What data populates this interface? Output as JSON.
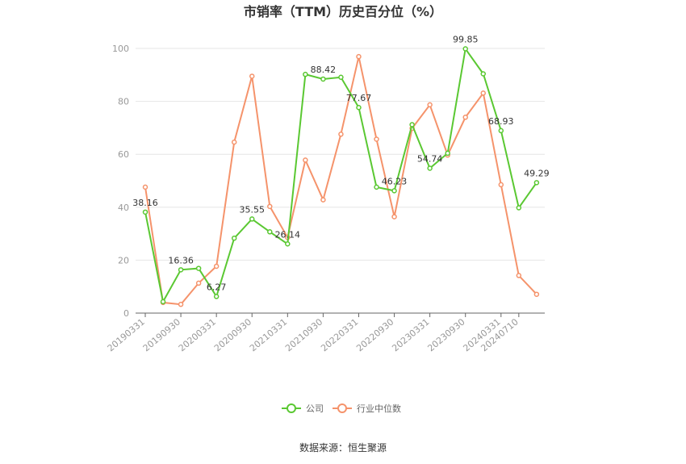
{
  "chart_data": {
    "type": "line",
    "title": "市销率（TTM）历史百分位（%）",
    "source": "数据来源：恒生聚源",
    "ylim": [
      0,
      100
    ],
    "yticks": [
      0,
      20,
      40,
      60,
      80,
      100
    ],
    "grid": true,
    "legend_position": "bottom",
    "x_tick_labels": [
      "20190331",
      "20190930",
      "20200331",
      "20200930",
      "20210331",
      "20210930",
      "20220331",
      "20220930",
      "20230331",
      "20230930",
      "20240331",
      "20240710"
    ],
    "x_tick_indices": [
      0,
      2,
      4,
      6,
      8,
      10,
      12,
      14,
      16,
      18,
      20,
      21
    ],
    "series": [
      {
        "name": "公司",
        "color": "#5ac832",
        "values": [
          38.16,
          4.3,
          16.36,
          16.9,
          6.27,
          28.3,
          35.55,
          30.7,
          26.14,
          90.2,
          88.42,
          89.1,
          77.67,
          47.6,
          46.23,
          71.2,
          54.74,
          60.4,
          99.85,
          90.4,
          68.93,
          39.8,
          49.29
        ],
        "labels": {
          "0": "38.16",
          "2": "16.36",
          "4": "6.27",
          "6": "35.55",
          "8": "26.14",
          "10": "88.42",
          "12": "77.67",
          "14": "46.23",
          "16": "54.74",
          "18": "99.85",
          "20": "68.93",
          "22": "49.29"
        }
      },
      {
        "name": "行业中位数",
        "color": "#f5936b",
        "values": [
          47.6,
          4.0,
          3.3,
          11.3,
          17.7,
          64.6,
          89.5,
          40.3,
          28.6,
          57.8,
          42.8,
          67.6,
          96.9,
          65.7,
          36.4,
          69.8,
          78.7,
          59.7,
          74.0,
          83.1,
          48.5,
          14.2,
          7.1
        ]
      }
    ]
  }
}
